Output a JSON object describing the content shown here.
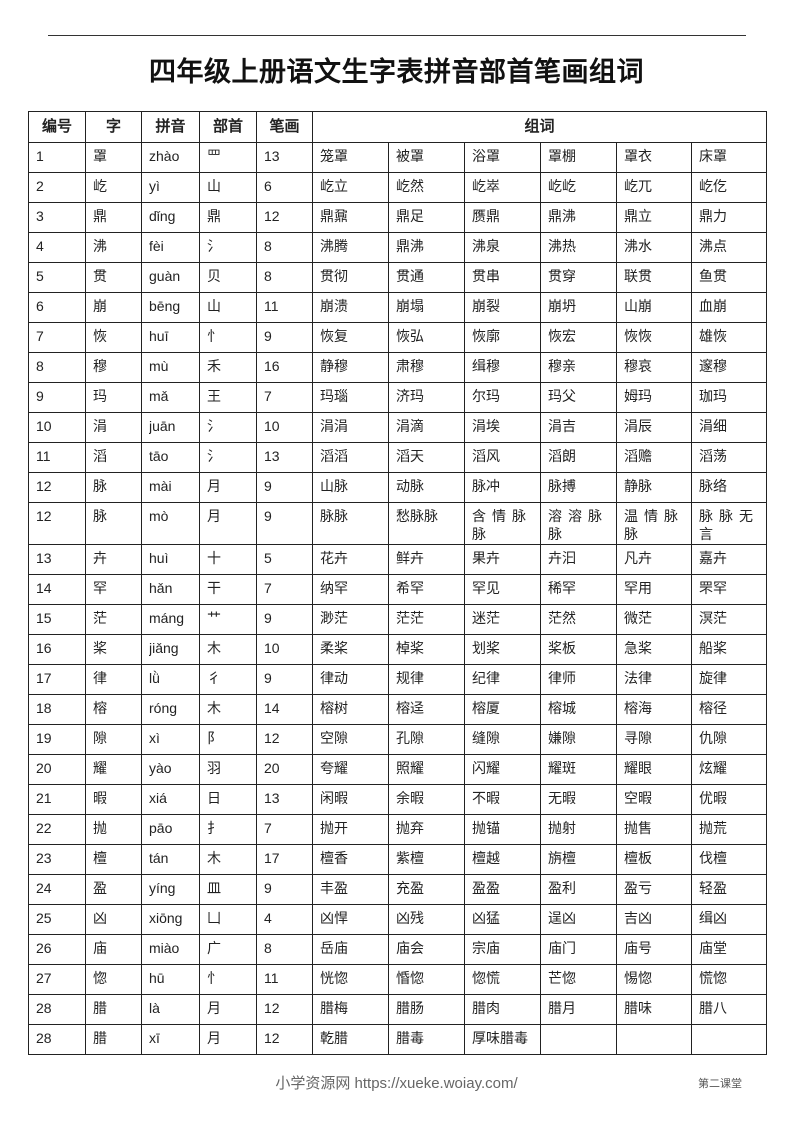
{
  "title": "四年级上册语文生字表拼音部首笔画组词",
  "table": {
    "headers": [
      "编号",
      "字",
      "拼音",
      "部首",
      "笔画",
      "组词"
    ],
    "rows": [
      [
        "1",
        "罩",
        "zhào",
        "罒",
        "13",
        [
          "笼罩",
          "被罩",
          "浴罩",
          "罩棚",
          "罩衣",
          "床罩"
        ]
      ],
      [
        "2",
        "屹",
        "yì",
        "山",
        "6",
        [
          "屹立",
          "屹然",
          "屹崒",
          "屹屹",
          "屹兀",
          "屹仡"
        ]
      ],
      [
        "3",
        "鼎",
        "dǐng",
        "鼎",
        "12",
        [
          "鼎鼐",
          "鼎足",
          "赝鼎",
          "鼎沸",
          "鼎立",
          "鼎力"
        ]
      ],
      [
        "4",
        "沸",
        "fèi",
        "氵",
        "8",
        [
          "沸腾",
          "鼎沸",
          "沸泉",
          "沸热",
          "沸水",
          "沸点"
        ]
      ],
      [
        "5",
        "贯",
        "guàn",
        "贝",
        "8",
        [
          "贯彻",
          "贯通",
          "贯串",
          "贯穿",
          "联贯",
          "鱼贯"
        ]
      ],
      [
        "6",
        "崩",
        "bēng",
        "山",
        "11",
        [
          "崩溃",
          "崩塌",
          "崩裂",
          "崩坍",
          "山崩",
          "血崩"
        ]
      ],
      [
        "7",
        "恢",
        "huī",
        "忄",
        "9",
        [
          "恢复",
          "恢弘",
          "恢廓",
          "恢宏",
          "恢恢",
          "雄恢"
        ]
      ],
      [
        "8",
        "穆",
        "mù",
        "禾",
        "16",
        [
          "静穆",
          "肃穆",
          "缉穆",
          "穆亲",
          "穆哀",
          "邃穆"
        ]
      ],
      [
        "9",
        "玛",
        "mǎ",
        "王",
        "7",
        [
          "玛瑙",
          "济玛",
          "尔玛",
          "玛父",
          "姆玛",
          "珈玛"
        ]
      ],
      [
        "10",
        "涓",
        "juān",
        "氵",
        "10",
        [
          "涓涓",
          "涓滴",
          "涓埃",
          "涓吉",
          "涓辰",
          "涓细"
        ]
      ],
      [
        "11",
        "滔",
        "tāo",
        "氵",
        "13",
        [
          "滔滔",
          "滔天",
          "滔风",
          "滔朗",
          "滔赡",
          "滔荡"
        ]
      ],
      [
        "12",
        "脉",
        "mài",
        "月",
        "9",
        [
          "山脉",
          "动脉",
          "脉冲",
          "脉搏",
          "静脉",
          "脉络"
        ]
      ],
      [
        "12",
        "脉",
        "mò",
        "月",
        "9",
        [
          "脉脉",
          "愁脉脉",
          "含情脉脉",
          "溶溶脉脉",
          "温情脉脉",
          "脉脉无言"
        ]
      ],
      [
        "13",
        "卉",
        "huì",
        "十",
        "5",
        [
          "花卉",
          "鲜卉",
          "果卉",
          "卉汩",
          "凡卉",
          "嘉卉"
        ]
      ],
      [
        "14",
        "罕",
        "hǎn",
        "干",
        "7",
        [
          "纳罕",
          "希罕",
          "罕见",
          "稀罕",
          "罕用",
          "罘罕"
        ]
      ],
      [
        "15",
        "茫",
        "máng",
        "艹",
        "9",
        [
          "渺茫",
          "茫茫",
          "迷茫",
          "茫然",
          "微茫",
          "溟茫"
        ]
      ],
      [
        "16",
        "桨",
        "jiǎng",
        "木",
        "10",
        [
          "柔桨",
          "棹桨",
          "划桨",
          "桨板",
          "急桨",
          "船桨"
        ]
      ],
      [
        "17",
        "律",
        "lǜ",
        "彳",
        "9",
        [
          "律动",
          "规律",
          "纪律",
          "律师",
          "法律",
          "旋律"
        ]
      ],
      [
        "18",
        "榕",
        "róng",
        "木",
        "14",
        [
          "榕树",
          "榕迳",
          "榕厦",
          "榕城",
          "榕海",
          "榕径"
        ]
      ],
      [
        "19",
        "隙",
        "xì",
        "阝",
        "12",
        [
          "空隙",
          "孔隙",
          "缝隙",
          "嫌隙",
          "寻隙",
          "仇隙"
        ]
      ],
      [
        "20",
        "耀",
        "yào",
        "羽",
        "20",
        [
          "夸耀",
          "照耀",
          "闪耀",
          "耀斑",
          "耀眼",
          "炫耀"
        ]
      ],
      [
        "21",
        "暇",
        "xiá",
        "日",
        "13",
        [
          "闲暇",
          "余暇",
          "不暇",
          "无暇",
          "空暇",
          "优暇"
        ]
      ],
      [
        "22",
        "抛",
        "pāo",
        "扌",
        "7",
        [
          "抛开",
          "抛弃",
          "抛锚",
          "抛射",
          "抛售",
          "抛荒"
        ]
      ],
      [
        "23",
        "檀",
        "tán",
        "木",
        "17",
        [
          "檀香",
          "紫檀",
          "檀越",
          "旃檀",
          "檀板",
          "伐檀"
        ]
      ],
      [
        "24",
        "盈",
        "yíng",
        "皿",
        "9",
        [
          "丰盈",
          "充盈",
          "盈盈",
          "盈利",
          "盈亏",
          "轻盈"
        ]
      ],
      [
        "25",
        "凶",
        "xiōng",
        "凵",
        "4",
        [
          "凶悍",
          "凶残",
          "凶猛",
          "逞凶",
          "吉凶",
          "缉凶"
        ]
      ],
      [
        "26",
        "庙",
        "miào",
        "广",
        "8",
        [
          "岳庙",
          "庙会",
          "宗庙",
          "庙门",
          "庙号",
          "庙堂"
        ]
      ],
      [
        "27",
        "惚",
        "hū",
        "忄",
        "11",
        [
          "恍惚",
          "惛惚",
          "惚慌",
          "芒惚",
          "惕惚",
          "慌惚"
        ]
      ],
      [
        "28",
        "腊",
        "là",
        "月",
        "12",
        [
          "腊梅",
          "腊肠",
          "腊肉",
          "腊月",
          "腊味",
          "腊八"
        ]
      ],
      [
        "28",
        "腊",
        "xī",
        "月",
        "12",
        [
          "乾腊",
          "腊毒",
          "厚味腊毒",
          "",
          "",
          ""
        ]
      ]
    ]
  },
  "footer": {
    "site": "小学资源网 https://xueke.woiay.com/",
    "right": "第二课堂"
  }
}
